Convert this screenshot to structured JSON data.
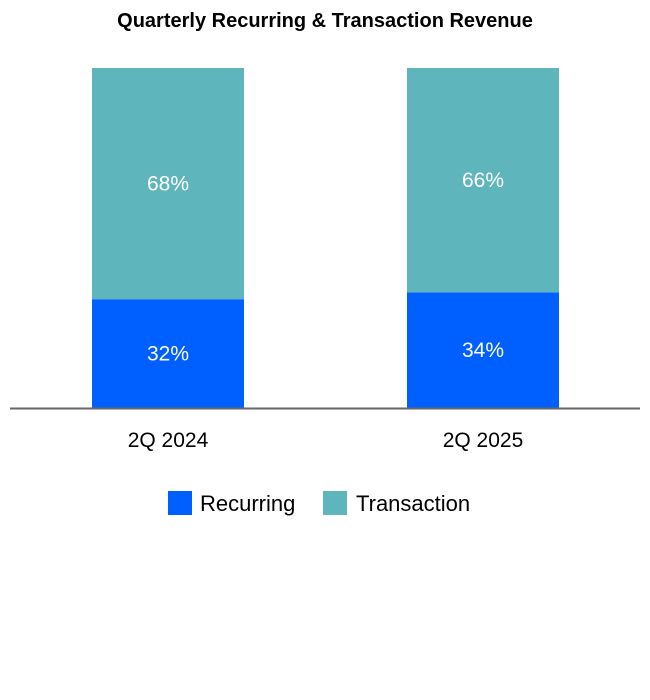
{
  "chart_data": {
    "type": "bar",
    "stacked": true,
    "percent_stacked": true,
    "title": "Quarterly Recurring & Transaction Revenue",
    "xlabel": "",
    "ylabel": "",
    "ylim": [
      0,
      100
    ],
    "grid": false,
    "legend_position": "bottom",
    "categories": [
      "2Q 2024",
      "2Q 2025"
    ],
    "series": [
      {
        "name": "Recurring",
        "values": [
          32,
          34
        ],
        "labels": [
          "32%",
          "34%"
        ],
        "color": "#0060FF"
      },
      {
        "name": "Transaction",
        "values": [
          68,
          66
        ],
        "labels": [
          "68%",
          "66%"
        ],
        "color": "#5EB5BC"
      }
    ]
  }
}
